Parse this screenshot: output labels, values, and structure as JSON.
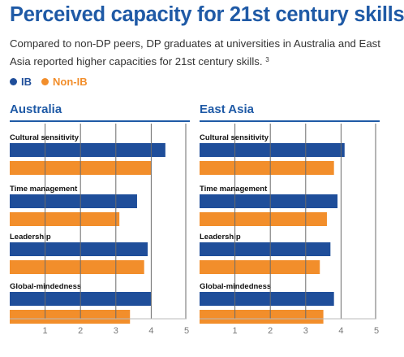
{
  "title": "Perceived capacity for 21st century skills",
  "subtitle": "Compared to non-DP peers, DP graduates at universities in Australia and East Asia reported higher capacities for 21st century skills.",
  "footnote_ref": "3",
  "colors": {
    "title": "#1f5aa6",
    "ib": "#1f4e9a",
    "non_ib": "#f28e2b",
    "grid": "#6b6b6b"
  },
  "chart_data": [
    {
      "type": "bar",
      "orientation": "horizontal",
      "title": "Australia",
      "categories": [
        "Cultural sensitivity",
        "Time management",
        "Leadership",
        "Global-mindedness"
      ],
      "series": [
        {
          "name": "IB",
          "values": [
            4.4,
            3.6,
            3.9,
            4.0
          ]
        },
        {
          "name": "Non-IB",
          "values": [
            4.0,
            3.1,
            3.8,
            3.4
          ]
        }
      ],
      "xlim": [
        0,
        5
      ],
      "xticks": [
        1,
        2,
        3,
        4,
        5
      ],
      "grid": true,
      "legend": "top-left"
    },
    {
      "type": "bar",
      "orientation": "horizontal",
      "title": "East Asia",
      "categories": [
        "Cultural sensitivity",
        "Time management",
        "Leadership",
        "Global-mindedness"
      ],
      "series": [
        {
          "name": "IB",
          "values": [
            4.1,
            3.9,
            3.7,
            3.8
          ]
        },
        {
          "name": "Non-IB",
          "values": [
            3.8,
            3.6,
            3.4,
            3.5
          ]
        }
      ],
      "xlim": [
        0,
        5
      ],
      "xticks": [
        1,
        2,
        3,
        4,
        5
      ],
      "grid": true,
      "legend": "top-left"
    }
  ]
}
